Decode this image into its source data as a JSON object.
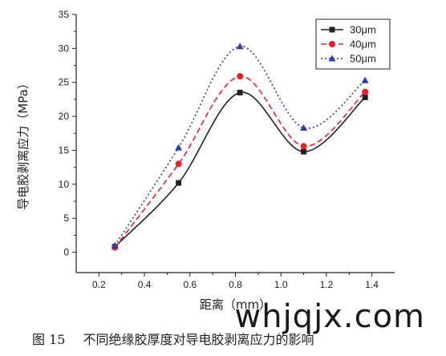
{
  "chart_data": {
    "type": "line",
    "xlabel": "距离（mm）",
    "ylabel": "导电胶剥离应力（MPa）",
    "xlim": [
      0.1,
      1.5
    ],
    "ylim": [
      -3,
      35
    ],
    "xticks": [
      0.2,
      0.4,
      0.6,
      0.8,
      1.0,
      1.2,
      1.4
    ],
    "yticks": [
      0,
      5,
      10,
      15,
      20,
      25,
      30,
      35
    ],
    "x": [
      0.27,
      0.55,
      0.82,
      1.1,
      1.37
    ],
    "series": [
      {
        "name": "30μm",
        "values": [
          0.8,
          10.2,
          23.5,
          14.8,
          22.8
        ],
        "color": "#222222",
        "marker": "square",
        "dash": "solid"
      },
      {
        "name": "40μm",
        "values": [
          0.7,
          13.0,
          25.9,
          15.6,
          23.6
        ],
        "color": "#e8202a",
        "marker": "circle",
        "dash": "dashed"
      },
      {
        "name": "50μm",
        "values": [
          1.0,
          15.4,
          30.3,
          18.3,
          25.3
        ],
        "color": "#2c3ea8",
        "marker": "triangle",
        "dash": "dotted"
      }
    ],
    "legend_position": "top-right",
    "grid": false
  },
  "caption": {
    "number": "图 15",
    "text": "不同绝缘胶厚度对导电胶剥离应力的影响"
  },
  "watermark": "whjqjx.com"
}
